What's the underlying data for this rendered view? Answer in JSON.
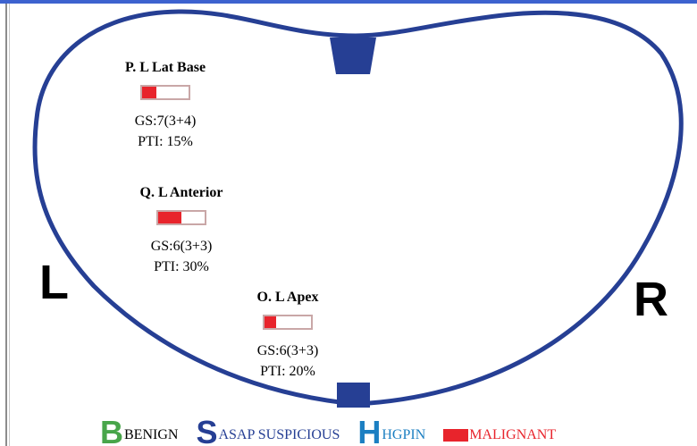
{
  "colors": {
    "outline": "#263f94",
    "top_bar": "#3d62cf",
    "malignant": "#e8242c",
    "benign": "#48a54a",
    "suspicious": "#263f94",
    "hgpin": "#1c7fc2"
  },
  "sides": {
    "left": "L",
    "right": "R"
  },
  "cores": [
    {
      "title": "P. L Lat Base",
      "gs": "GS:7(3+4)",
      "pti": "PTI: 15%",
      "fraction": 0.3
    },
    {
      "title": "Q. L Anterior",
      "gs": "GS:6(3+3)",
      "pti": "PTI: 30%",
      "fraction": 0.5
    },
    {
      "title": "O. L Apex",
      "gs": "GS:6(3+3)",
      "pti": "PTI: 20%",
      "fraction": 0.25
    }
  ],
  "legend": {
    "benign": {
      "letter": "B",
      "label": "BENIGN"
    },
    "suspicious": {
      "letter": "S",
      "label": "ASAP SUSPICIOUS"
    },
    "hgpin": {
      "letter": "H",
      "label": "HGPIN"
    },
    "malignant": {
      "label": "MALIGNANT"
    }
  }
}
